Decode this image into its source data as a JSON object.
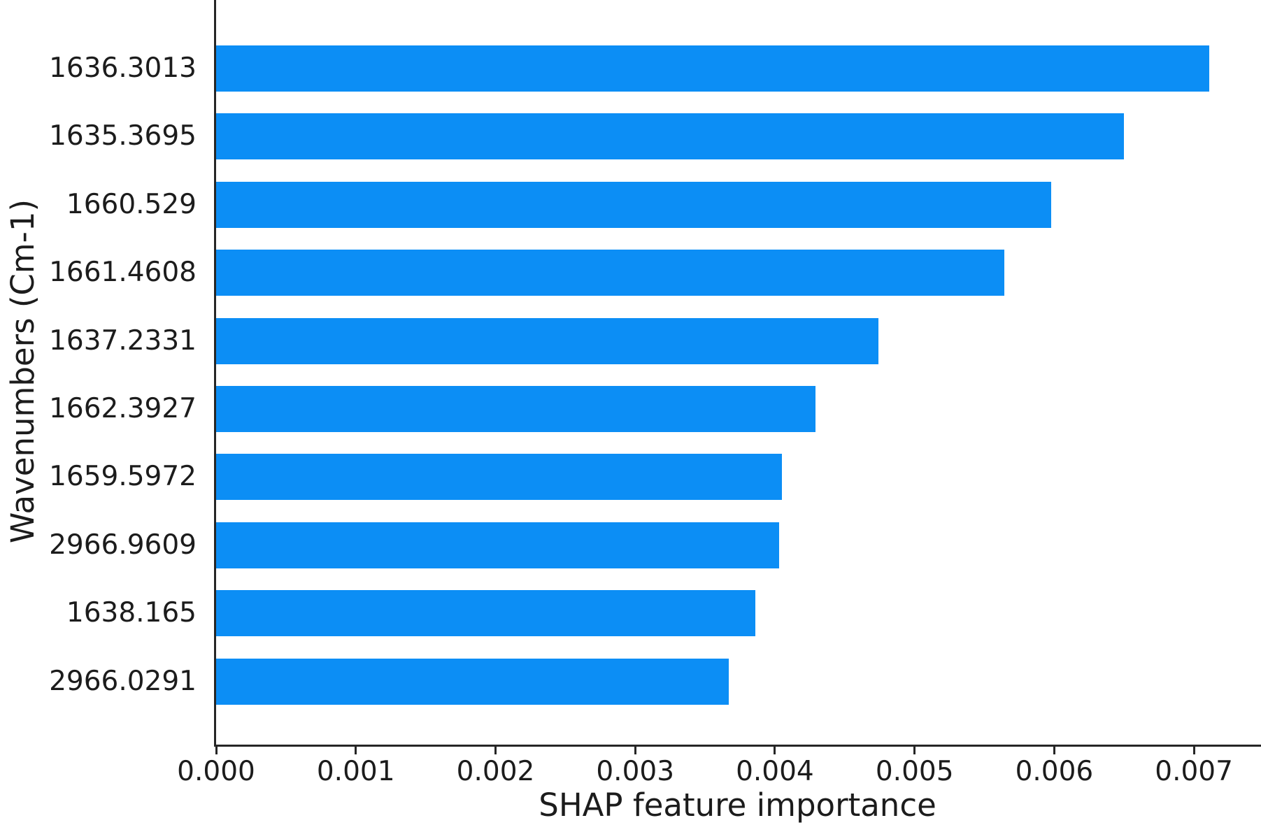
{
  "figure": {
    "background_color": "#ffffff",
    "text_color": "#1c1c1c"
  },
  "chart_data": {
    "type": "bar",
    "orientation": "horizontal",
    "xlabel": "SHAP feature importance",
    "ylabel": "Wavenumbers (Cm-1)",
    "categories": [
      "1636.3013",
      "1635.3695",
      "1660.529",
      "1661.4608",
      "1637.2331",
      "1662.3927",
      "1659.5972",
      "2966.9609",
      "1638.165",
      "2966.0291"
    ],
    "values": [
      0.00711,
      0.0065,
      0.00598,
      0.00564,
      0.00474,
      0.00429,
      0.00405,
      0.00403,
      0.00386,
      0.00367
    ],
    "xlim": [
      0,
      0.00748
    ],
    "xticks": [
      0,
      0.001,
      0.002,
      0.003,
      0.004,
      0.005,
      0.006,
      0.007
    ],
    "xtick_labels": [
      "0.000",
      "0.001",
      "0.002",
      "0.003",
      "0.004",
      "0.005",
      "0.006",
      "0.007"
    ],
    "bar_color": "#0c8ef5",
    "axis_color": "#262626",
    "grid": false,
    "legend": null
  }
}
